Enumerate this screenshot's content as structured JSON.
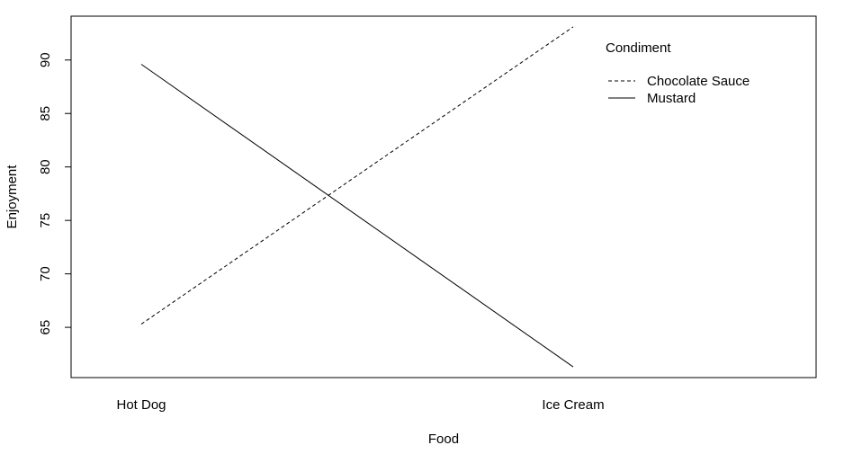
{
  "chart_data": {
    "type": "line",
    "xlabel": "Food",
    "ylabel": "Enjoyment",
    "categories": [
      "Hot Dog",
      "Ice Cream"
    ],
    "series": [
      {
        "name": "Chocolate Sauce",
        "values": [
          65.3,
          93.1
        ],
        "line_style": "dashed",
        "color": "#000000"
      },
      {
        "name": "Mustard",
        "values": [
          89.6,
          61.3
        ],
        "line_style": "solid",
        "color": "#000000"
      }
    ],
    "ylim": [
      60.3,
      94.1
    ],
    "yticks": [
      65,
      70,
      75,
      80,
      85,
      90
    ],
    "grid": false,
    "legend": {
      "title": "Condiment",
      "placement": "top-right",
      "box": false
    }
  }
}
